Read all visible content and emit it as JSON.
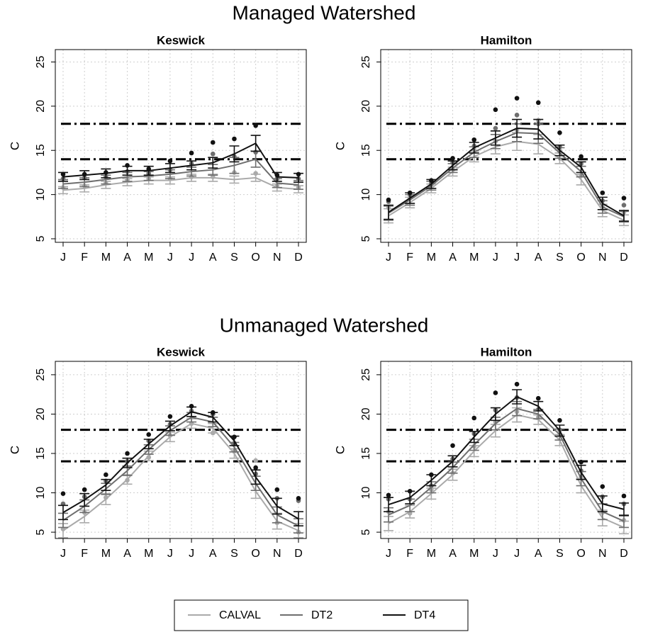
{
  "section_titles": [
    "Managed Watershed",
    "Unmanaged Watershed"
  ],
  "y_label": "C",
  "chart_data": [
    {
      "type": "line",
      "title": "Keswick",
      "categories": [
        "J",
        "F",
        "M",
        "A",
        "M",
        "J",
        "J",
        "A",
        "S",
        "O",
        "N",
        "D"
      ],
      "ylim": [
        4.6,
        26.4
      ],
      "yticks": [
        5,
        10,
        15,
        20,
        25
      ],
      "grid": true,
      "hlines": [
        14,
        18
      ],
      "series": [
        {
          "name": "CALVAL",
          "color": "#aaaaaa",
          "values": [
            10.5,
            10.7,
            11.1,
            11.4,
            11.6,
            11.6,
            11.9,
            11.9,
            11.7,
            11.9,
            10.8,
            10.6
          ],
          "errors": [
            0.4,
            0.4,
            0.4,
            0.4,
            0.4,
            0.4,
            0.4,
            0.4,
            0.4,
            0.4,
            0.4,
            0.4
          ],
          "points": [
            10.8,
            11.0,
            11.3,
            11.7,
            11.8,
            11.8,
            12.0,
            12.0,
            12.5,
            12.4,
            11.0,
            10.8
          ]
        },
        {
          "name": "DT2",
          "color": "#6e6e6e",
          "values": [
            11.2,
            11.4,
            11.7,
            12.0,
            12.1,
            12.3,
            12.6,
            12.8,
            13.3,
            14.0,
            11.3,
            11.1
          ],
          "errors": [
            0.5,
            0.5,
            0.5,
            0.5,
            0.5,
            0.5,
            0.5,
            0.6,
            0.9,
            0.9,
            0.5,
            0.5
          ],
          "points": [
            11.8,
            11.9,
            12.0,
            12.6,
            12.4,
            12.8,
            13.5,
            14.6,
            14.3,
            14.8,
            11.8,
            11.8
          ]
        },
        {
          "name": "DT4",
          "color": "#111111",
          "values": [
            12.0,
            12.2,
            12.4,
            12.7,
            12.7,
            13.0,
            13.3,
            13.6,
            14.6,
            15.8,
            12.0,
            11.9
          ],
          "errors": [
            0.5,
            0.5,
            0.5,
            0.5,
            0.5,
            0.5,
            0.5,
            0.6,
            0.9,
            0.9,
            0.5,
            0.5
          ],
          "points": [
            12.3,
            12.3,
            12.5,
            13.3,
            12.9,
            13.8,
            14.7,
            15.9,
            16.3,
            17.8,
            12.2,
            12.3
          ]
        }
      ]
    },
    {
      "type": "line",
      "title": "Hamilton",
      "categories": [
        "J",
        "F",
        "M",
        "A",
        "M",
        "J",
        "J",
        "A",
        "S",
        "O",
        "N",
        "D"
      ],
      "ylim": [
        4.6,
        26.4
      ],
      "yticks": [
        5,
        10,
        15,
        20,
        25
      ],
      "grid": true,
      "hlines": [
        14,
        18
      ],
      "series": [
        {
          "name": "CALVAL",
          "color": "#aaaaaa",
          "values": [
            7.6,
            9.1,
            10.7,
            12.6,
            14.3,
            15.4,
            16.0,
            15.7,
            14.1,
            11.7,
            8.2,
            7.1
          ],
          "errors": [
            0.8,
            0.6,
            0.5,
            0.5,
            0.6,
            0.8,
            1.0,
            1.1,
            0.6,
            0.6,
            0.7,
            0.6
          ],
          "points": [
            8.5,
            9.6,
            11.0,
            12.9,
            15.1,
            16.0,
            17.3,
            18.4,
            15.0,
            12.2,
            8.6,
            8.0
          ]
        },
        {
          "name": "DT2",
          "color": "#6e6e6e",
          "values": [
            7.9,
            9.4,
            11.0,
            13.0,
            14.8,
            16.0,
            17.0,
            16.9,
            14.7,
            12.6,
            8.6,
            7.5
          ],
          "errors": [
            0.8,
            0.6,
            0.5,
            0.5,
            0.6,
            0.8,
            1.0,
            1.1,
            0.6,
            0.6,
            0.7,
            0.6
          ],
          "points": [
            9.2,
            10.0,
            11.3,
            13.6,
            15.5,
            17.5,
            19.0,
            18.0,
            15.4,
            13.5,
            9.3,
            8.8
          ]
        },
        {
          "name": "DT4",
          "color": "#111111",
          "values": [
            8.0,
            9.6,
            11.2,
            13.3,
            15.3,
            16.4,
            17.5,
            17.4,
            15.0,
            13.1,
            9.0,
            7.6
          ],
          "errors": [
            0.8,
            0.6,
            0.5,
            0.5,
            0.6,
            0.8,
            1.0,
            1.1,
            0.6,
            0.6,
            0.7,
            0.6
          ],
          "points": [
            9.4,
            10.2,
            11.6,
            14.1,
            16.2,
            19.6,
            20.9,
            20.4,
            17.0,
            14.3,
            10.2,
            9.6
          ]
        }
      ]
    },
    {
      "type": "line",
      "title": "Keswick",
      "categories": [
        "J",
        "F",
        "M",
        "A",
        "M",
        "J",
        "J",
        "A",
        "S",
        "O",
        "N",
        "D"
      ],
      "ylim": [
        4.2,
        26.7
      ],
      "yticks": [
        5,
        10,
        15,
        20,
        25
      ],
      "grid": true,
      "hlines": [
        14,
        18
      ],
      "series": [
        {
          "name": "CALVAL",
          "color": "#aaaaaa",
          "values": [
            5.2,
            7.0,
            9.2,
            11.7,
            14.7,
            17.1,
            18.8,
            18.2,
            15.0,
            10.2,
            6.4,
            5.2
          ],
          "errors": [
            0.9,
            0.8,
            0.7,
            0.6,
            0.6,
            0.6,
            0.6,
            0.6,
            0.6,
            0.9,
            1.0,
            0.9
          ],
          "points": [
            5.4,
            7.5,
            9.4,
            11.6,
            14.5,
            17.3,
            18.8,
            17.6,
            15.3,
            14.1,
            6.2,
            5.0
          ]
        },
        {
          "name": "DT2",
          "color": "#6e6e6e",
          "values": [
            6.5,
            8.3,
            10.5,
            12.8,
            15.5,
            17.9,
            19.6,
            19.0,
            15.8,
            11.2,
            7.2,
            5.8
          ],
          "errors": [
            0.9,
            0.8,
            0.7,
            0.6,
            0.6,
            0.6,
            0.6,
            0.6,
            0.6,
            0.9,
            1.0,
            0.9
          ],
          "points": [
            8.6,
            9.5,
            11.5,
            14.0,
            16.6,
            18.7,
            20.4,
            20.0,
            16.3,
            12.4,
            9.3,
            9.0
          ]
        },
        {
          "name": "DT4",
          "color": "#111111",
          "values": [
            7.5,
            9.1,
            11.0,
            13.8,
            16.2,
            18.5,
            20.3,
            19.6,
            16.6,
            12.0,
            8.3,
            6.7
          ],
          "errors": [
            0.9,
            0.8,
            0.7,
            0.6,
            0.6,
            0.6,
            0.6,
            0.6,
            0.6,
            0.9,
            1.0,
            0.9
          ],
          "points": [
            9.9,
            10.4,
            12.3,
            15.0,
            17.4,
            19.7,
            21.0,
            20.2,
            17.1,
            13.2,
            10.4,
            9.3
          ]
        }
      ]
    },
    {
      "type": "line",
      "title": "Hamilton",
      "categories": [
        "J",
        "F",
        "M",
        "A",
        "M",
        "J",
        "J",
        "A",
        "S",
        "O",
        "N",
        "D"
      ],
      "ylim": [
        4.2,
        26.7
      ],
      "yticks": [
        5,
        10,
        15,
        20,
        25
      ],
      "grid": true,
      "hlines": [
        14,
        18
      ],
      "series": [
        {
          "name": "CALVAL",
          "color": "#aaaaaa",
          "values": [
            6.1,
            7.6,
            9.9,
            12.3,
            15.3,
            17.9,
            19.9,
            19.3,
            16.7,
            10.9,
            6.8,
            5.6
          ],
          "errors": [
            0.9,
            0.8,
            0.7,
            0.7,
            0.7,
            0.8,
            0.9,
            0.6,
            0.7,
            0.9,
            1.0,
            0.8
          ],
          "points": [
            7.6,
            7.4,
            10.4,
            12.5,
            15.9,
            19.0,
            20.3,
            19.6,
            17.4,
            12.0,
            7.5,
            6.5
          ]
        },
        {
          "name": "DT2",
          "color": "#6e6e6e",
          "values": [
            7.2,
            8.4,
            10.7,
            13.2,
            16.1,
            18.8,
            20.7,
            20.0,
            17.4,
            11.8,
            7.6,
            6.4
          ],
          "errors": [
            0.9,
            0.8,
            0.7,
            0.7,
            0.7,
            0.8,
            0.9,
            0.6,
            0.7,
            0.9,
            1.0,
            0.8
          ],
          "points": [
            9.2,
            9.2,
            10.9,
            14.3,
            17.5,
            20.5,
            22.1,
            20.6,
            18.0,
            12.8,
            9.5,
            8.6
          ]
        },
        {
          "name": "DT4",
          "color": "#111111",
          "values": [
            8.5,
            9.4,
            11.6,
            14.0,
            17.1,
            20.0,
            22.2,
            21.0,
            17.9,
            12.6,
            8.6,
            7.9
          ],
          "errors": [
            0.9,
            0.8,
            0.7,
            0.7,
            0.7,
            0.8,
            0.9,
            0.6,
            0.7,
            0.9,
            1.0,
            0.8
          ],
          "points": [
            9.7,
            10.2,
            12.3,
            16.0,
            19.5,
            22.7,
            23.8,
            22.0,
            19.2,
            13.9,
            10.8,
            9.6
          ]
        }
      ]
    }
  ]
}
